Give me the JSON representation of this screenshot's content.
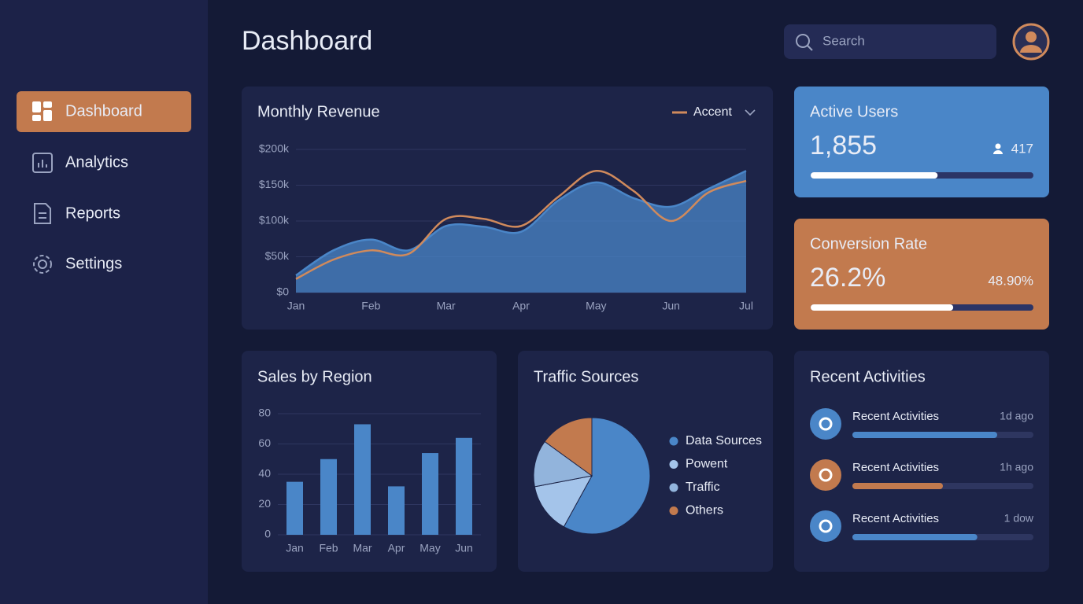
{
  "sidebar": {
    "nav": [
      "Dashboard",
      "Analytics",
      "Reports",
      "Settings"
    ]
  },
  "header": {
    "title": "Dashboard",
    "search_placeholder": "Search"
  },
  "revenue_chart": {
    "type": "area",
    "title": "Monthly Revenue",
    "categories": [
      "Jan",
      null,
      "Feb",
      null,
      "Mar",
      null,
      "Apr",
      null,
      "May",
      null,
      "Jun",
      null,
      "Jul"
    ],
    "series": [
      {
        "color": "#4a86c8",
        "values": [
          24000,
          59000,
          74000,
          59000,
          93000,
          92000,
          85000,
          129000,
          154000,
          132000,
          120000,
          145000,
          170000
        ]
      },
      {
        "name": "Accent",
        "color": "#d08a5c",
        "values": [
          19000,
          46000,
          59000,
          54000,
          103000,
          103000,
          93000,
          134000,
          170000,
          142000,
          100000,
          140000,
          156000
        ]
      }
    ],
    "ylim": [
      0,
      200000
    ],
    "yticks": [
      {
        "value": 0,
        "label": "$0"
      },
      {
        "value": 50000,
        "label": "$50k"
      },
      {
        "value": 100000,
        "label": "$100k"
      },
      {
        "value": 150000,
        "label": "$150k"
      },
      {
        "value": 200000,
        "label": "$200k"
      }
    ],
    "grid": true
  },
  "active_users": {
    "title": "Active Users",
    "value": "1,855",
    "secondary": "417",
    "progress": 57
  },
  "conversion_rate": {
    "title": "Conversion Rate",
    "value": "26.2%",
    "secondary": "48.90%",
    "progress": 64
  },
  "sales_chart": {
    "type": "bar",
    "title": "Sales by Region",
    "categories": [
      "Jan",
      "Feb",
      "Mar",
      "Apr",
      "May",
      "Jun"
    ],
    "values": [
      35,
      50,
      73,
      32,
      54,
      64
    ],
    "color": "#4a86c8",
    "ylim": [
      0,
      80
    ],
    "yticks": [
      0,
      20,
      40,
      60,
      80
    ],
    "grid": true
  },
  "traffic_chart": {
    "type": "pie",
    "title": "Traffic Sources",
    "categories": [
      "Data Sources",
      "Powent",
      "Traffic",
      "Others"
    ],
    "values": [
      58,
      14,
      13,
      15
    ],
    "colors": [
      "#4a86c8",
      "#a4c4ea",
      "#92b4dc",
      "#c27a4e"
    ]
  },
  "recent_activities": {
    "title": "Recent Activities",
    "items": [
      {
        "label": "Recent Activities",
        "time": "1d ago",
        "progress": 80,
        "color": "#4a86c8"
      },
      {
        "label": "Recent Activities",
        "time": "1h ago",
        "progress": 50,
        "color": "#c27a4e"
      },
      {
        "label": "Recent Activities",
        "time": "1 dow",
        "progress": 69,
        "color": "#4a86c8"
      }
    ]
  }
}
